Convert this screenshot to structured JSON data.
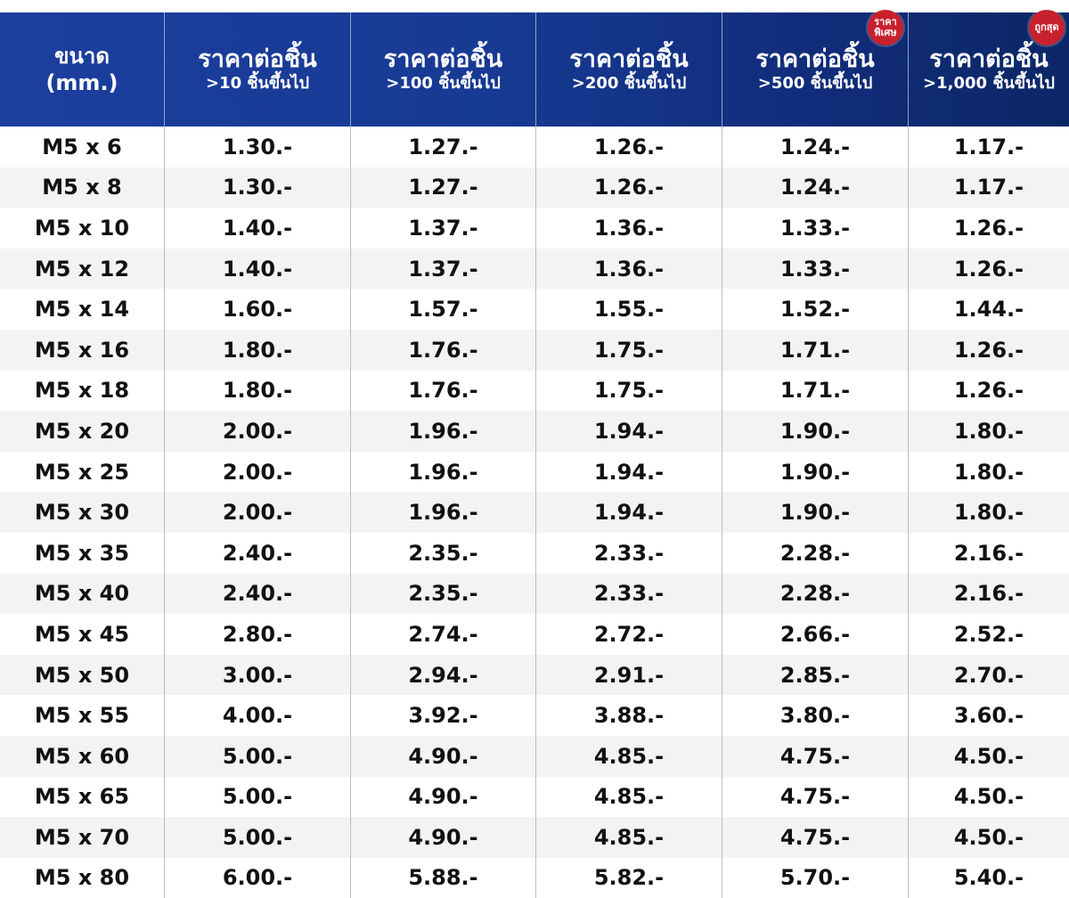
{
  "header": {
    "size": {
      "line1": "ขนาด",
      "line2": "(mm.)"
    },
    "columns": [
      {
        "title": "ราคาต่อชิ้น",
        "sub": ">10 ชิ้นขึ้นไป"
      },
      {
        "title": "ราคาต่อชิ้น",
        "sub": ">100 ชิ้นขึ้นไป"
      },
      {
        "title": "ราคาต่อชิ้น",
        "sub": ">200 ชิ้นขึ้นไป"
      },
      {
        "title": "ราคาต่อชิ้น",
        "sub": ">500 ชิ้นขึ้นไป",
        "badge_line1": "ราคา",
        "badge_line2": "พิเศษ"
      },
      {
        "title": "ราคาต่อชิ้น",
        "sub": ">1,000 ชิ้นขึ้นไป",
        "badge_line1": "ถูกสุด"
      }
    ]
  },
  "accent_colors": {
    "header": "#173a94",
    "badge": "#c8212e",
    "row_alt": "#f3f3f3"
  },
  "rows": [
    [
      "M5 x 6",
      "1.30.-",
      "1.27.-",
      "1.26.-",
      "1.24.-",
      "1.17.-"
    ],
    [
      "M5 x 8",
      "1.30.-",
      "1.27.-",
      "1.26.-",
      "1.24.-",
      "1.17.-"
    ],
    [
      "M5 x 10",
      "1.40.-",
      "1.37.-",
      "1.36.-",
      "1.33.-",
      "1.26.-"
    ],
    [
      "M5 x 12",
      "1.40.-",
      "1.37.-",
      "1.36.-",
      "1.33.-",
      "1.26.-"
    ],
    [
      "M5 x 14",
      "1.60.-",
      "1.57.-",
      "1.55.-",
      "1.52.-",
      "1.44.-"
    ],
    [
      "M5 x 16",
      "1.80.-",
      "1.76.-",
      "1.75.-",
      "1.71.-",
      "1.26.-"
    ],
    [
      "M5 x 18",
      "1.80.-",
      "1.76.-",
      "1.75.-",
      "1.71.-",
      "1.26.-"
    ],
    [
      "M5 x 20",
      "2.00.-",
      "1.96.-",
      "1.94.-",
      "1.90.-",
      "1.80.-"
    ],
    [
      "M5 x 25",
      "2.00.-",
      "1.96.-",
      "1.94.-",
      "1.90.-",
      "1.80.-"
    ],
    [
      "M5 x 30",
      "2.00.-",
      "1.96.-",
      "1.94.-",
      "1.90.-",
      "1.80.-"
    ],
    [
      "M5 x 35",
      "2.40.-",
      "2.35.-",
      "2.33.-",
      "2.28.-",
      "2.16.-"
    ],
    [
      "M5 x 40",
      "2.40.-",
      "2.35.-",
      "2.33.-",
      "2.28.-",
      "2.16.-"
    ],
    [
      "M5 x 45",
      "2.80.-",
      "2.74.-",
      "2.72.-",
      "2.66.-",
      "2.52.-"
    ],
    [
      "M5 x 50",
      "3.00.-",
      "2.94.-",
      "2.91.-",
      "2.85.-",
      "2.70.-"
    ],
    [
      "M5 x 55",
      "4.00.-",
      "3.92.-",
      "3.88.-",
      "3.80.-",
      "3.60.-"
    ],
    [
      "M5 x 60",
      "5.00.-",
      "4.90.-",
      "4.85.-",
      "4.75.-",
      "4.50.-"
    ],
    [
      "M5 x 65",
      "5.00.-",
      "4.90.-",
      "4.85.-",
      "4.75.-",
      "4.50.-"
    ],
    [
      "M5 x 70",
      "5.00.-",
      "4.90.-",
      "4.85.-",
      "4.75.-",
      "4.50.-"
    ],
    [
      "M5 x 80",
      "6.00.-",
      "5.88.-",
      "5.82.-",
      "5.70.-",
      "5.40.-"
    ]
  ]
}
